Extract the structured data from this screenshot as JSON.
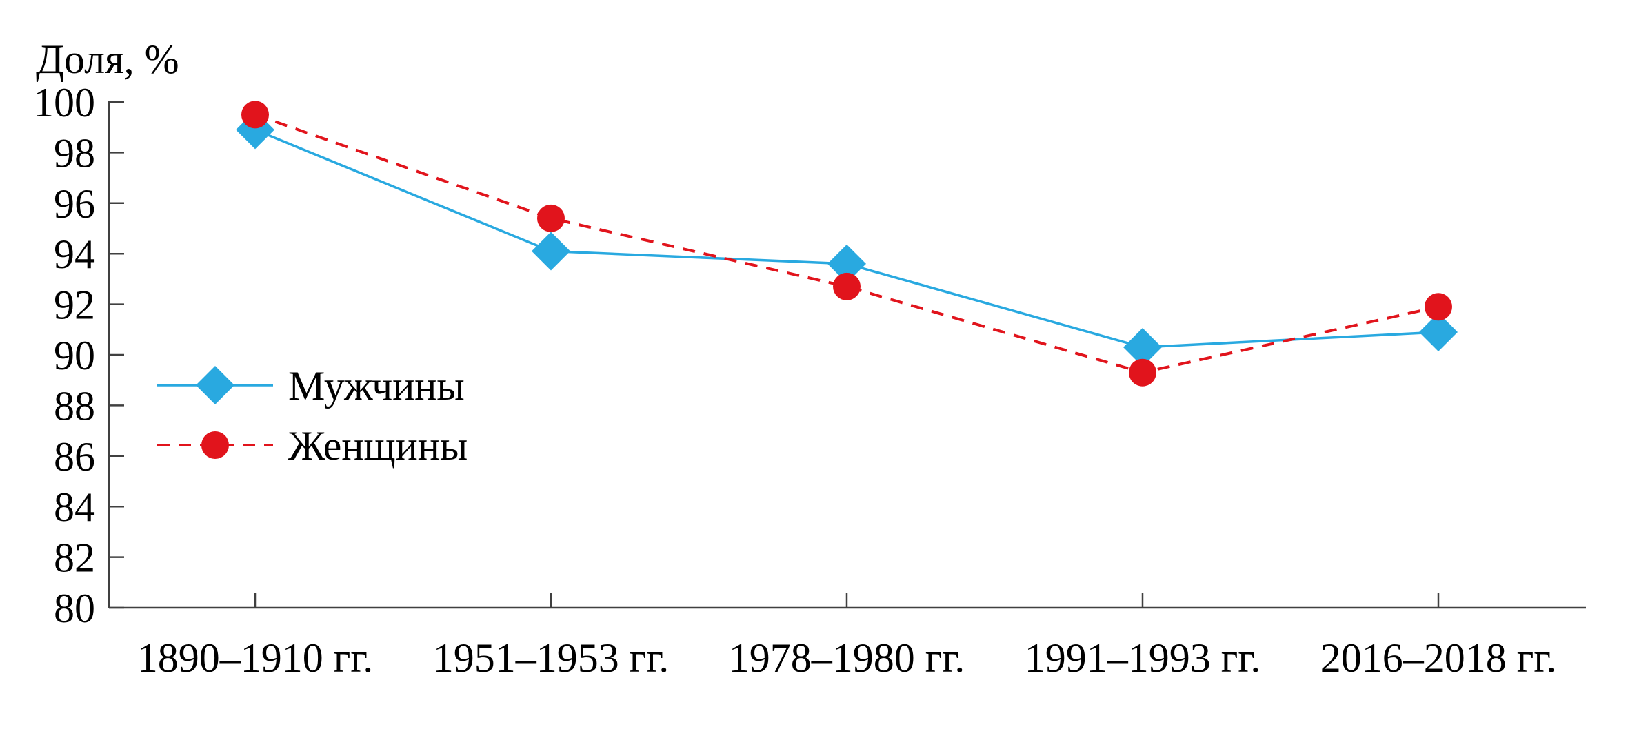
{
  "chart_data": {
    "type": "line",
    "title": "",
    "ylabel": "Доля, %",
    "xlabel": "",
    "categories": [
      "1890–1910 гг.",
      "1951–1953 гг.",
      "1978–1980 гг.",
      "1991–1993 гг.",
      "2016–2018 гг."
    ],
    "series": [
      {
        "name": "Мужчины",
        "values": [
          98.9,
          94.1,
          93.6,
          90.3,
          90.9
        ],
        "color": "#29A9E0",
        "marker": "diamond",
        "line_style": "solid"
      },
      {
        "name": "Женщины",
        "values": [
          99.5,
          95.4,
          92.7,
          89.3,
          91.9
        ],
        "color": "#E1141C",
        "marker": "circle",
        "line_style": "dashed"
      }
    ],
    "ylim": [
      80,
      100
    ],
    "ytick_step": 2,
    "ytick_labels": [
      "80",
      "82",
      "84",
      "86",
      "88",
      "90",
      "92",
      "94",
      "96",
      "98",
      "100"
    ],
    "grid": false,
    "legend_position": "inside-left",
    "axis_color": "#404040",
    "text_color": "#000000",
    "background_color": "#ffffff"
  }
}
